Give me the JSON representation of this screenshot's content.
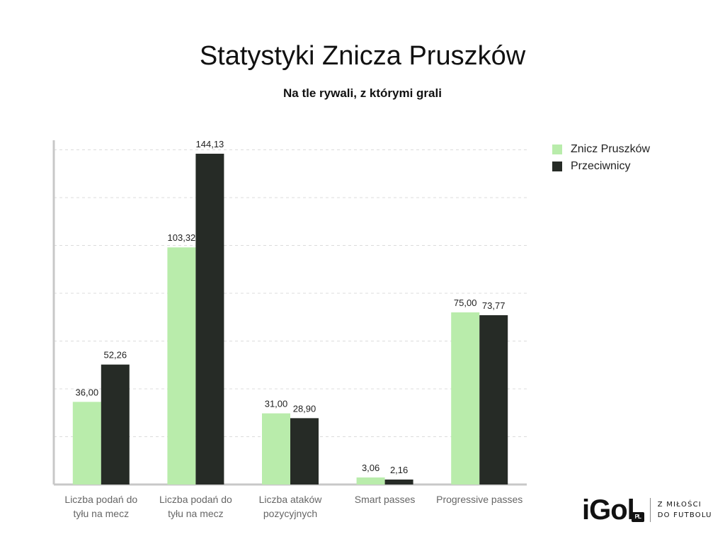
{
  "chart_data": {
    "type": "bar",
    "title": "Statystyki Znicza Pruszków",
    "subtitle": "Na tle rywali, z którymi grali",
    "categories": [
      [
        "Liczba podań do",
        "tyłu na mecz"
      ],
      [
        "Liczba podań do",
        "tyłu na mecz"
      ],
      [
        "Liczba ataków",
        "pozycyjnych"
      ],
      [
        "Smart passes"
      ],
      [
        "Progressive passes"
      ]
    ],
    "series": [
      {
        "name": "Znicz Pruszków",
        "color": "#b9ecab",
        "values": [
          36.0,
          103.32,
          31.0,
          3.06,
          75.0
        ],
        "labels": [
          "36,00",
          "103,32",
          "31,00",
          "3,06",
          "75,00"
        ]
      },
      {
        "name": "Przeciwnicy",
        "color": "#262b26",
        "values": [
          52.26,
          144.13,
          28.9,
          2.16,
          73.77
        ],
        "labels": [
          "52,26",
          "144,13",
          "28,90",
          "2,16",
          "73,77"
        ]
      }
    ],
    "ylim": [
      0,
      150
    ],
    "grid": true,
    "legend": "top-right"
  },
  "brand": {
    "word": "iGol",
    "badge": "PL",
    "tagline": [
      "Z MIŁOŚCI",
      "DO FUTBOLU"
    ]
  }
}
